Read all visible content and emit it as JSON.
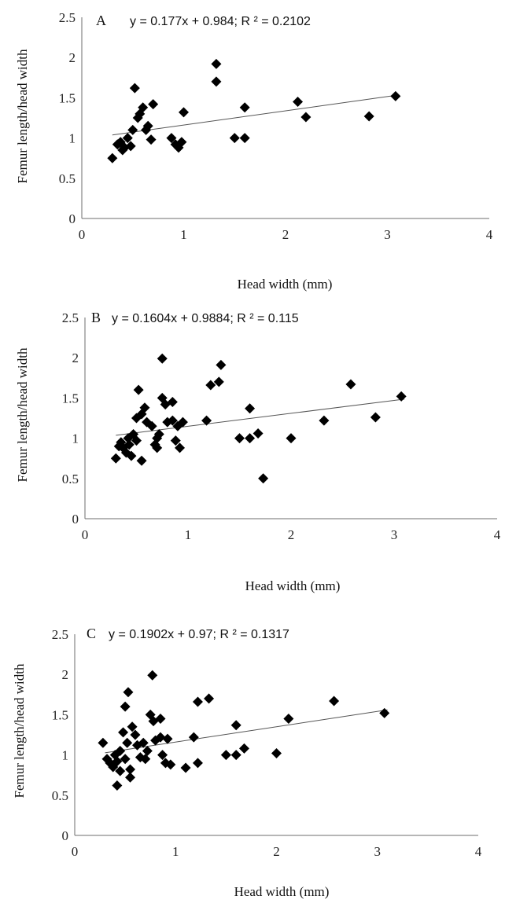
{
  "chart_data": [
    {
      "type": "scatter",
      "panel_label": "A",
      "equation_text": "y = 0.177x + 0.984; R ² = 0.2102",
      "xlabel": "Head width (mm)",
      "ylabel": "Femur length/head width",
      "xlim": [
        0,
        4
      ],
      "ylim": [
        0,
        2.5
      ],
      "x_ticks": [
        "0",
        "1",
        "2",
        "3",
        "4"
      ],
      "y_ticks": [
        "0",
        "0.5",
        "1",
        "1.5",
        "2",
        "2.5"
      ],
      "trendline": {
        "slope": 0.177,
        "intercept": 0.984,
        "x_range": [
          0.3,
          3.1
        ]
      },
      "points": [
        [
          0.3,
          0.75
        ],
        [
          0.35,
          0.92
        ],
        [
          0.38,
          0.95
        ],
        [
          0.4,
          0.85
        ],
        [
          0.42,
          0.88
        ],
        [
          0.45,
          1.0
        ],
        [
          0.48,
          0.9
        ],
        [
          0.5,
          1.1
        ],
        [
          0.52,
          1.62
        ],
        [
          0.55,
          1.25
        ],
        [
          0.57,
          1.3
        ],
        [
          0.6,
          1.38
        ],
        [
          0.63,
          1.1
        ],
        [
          0.65,
          1.15
        ],
        [
          0.68,
          0.98
        ],
        [
          0.7,
          1.42
        ],
        [
          0.88,
          1.0
        ],
        [
          0.92,
          0.92
        ],
        [
          0.95,
          0.88
        ],
        [
          0.98,
          0.95
        ],
        [
          1.0,
          1.32
        ],
        [
          1.32,
          1.92
        ],
        [
          1.32,
          1.7
        ],
        [
          1.5,
          1.0
        ],
        [
          1.6,
          1.38
        ],
        [
          1.6,
          1.0
        ],
        [
          2.12,
          1.45
        ],
        [
          2.2,
          1.26
        ],
        [
          2.82,
          1.27
        ],
        [
          3.08,
          1.52
        ]
      ]
    },
    {
      "type": "scatter",
      "panel_label": "B",
      "equation_text": "y = 0.1604x + 0.9884; R ² = 0.115",
      "xlabel": "Head width (mm)",
      "ylabel": "Femur length/head width",
      "xlim": [
        0,
        4
      ],
      "ylim": [
        0,
        2.5
      ],
      "x_ticks": [
        "0",
        "1",
        "2",
        "3",
        "4"
      ],
      "y_ticks": [
        "0",
        "0.5",
        "1",
        "1.5",
        "2",
        "2.5"
      ],
      "trendline": {
        "slope": 0.1604,
        "intercept": 0.9884,
        "x_range": [
          0.3,
          3.1
        ]
      },
      "points": [
        [
          0.3,
          0.75
        ],
        [
          0.33,
          0.9
        ],
        [
          0.35,
          0.95
        ],
        [
          0.37,
          0.88
        ],
        [
          0.4,
          0.82
        ],
        [
          0.42,
          1.0
        ],
        [
          0.43,
          0.92
        ],
        [
          0.45,
          0.78
        ],
        [
          0.47,
          1.05
        ],
        [
          0.5,
          1.25
        ],
        [
          0.5,
          0.97
        ],
        [
          0.52,
          1.6
        ],
        [
          0.55,
          0.72
        ],
        [
          0.55,
          1.3
        ],
        [
          0.58,
          1.38
        ],
        [
          0.6,
          1.2
        ],
        [
          0.65,
          1.15
        ],
        [
          0.68,
          0.92
        ],
        [
          0.7,
          0.88
        ],
        [
          0.7,
          1.0
        ],
        [
          0.72,
          1.05
        ],
        [
          0.75,
          1.5
        ],
        [
          0.75,
          1.99
        ],
        [
          0.78,
          1.42
        ],
        [
          0.8,
          1.2
        ],
        [
          0.85,
          1.45
        ],
        [
          0.85,
          1.22
        ],
        [
          0.88,
          0.97
        ],
        [
          0.9,
          1.15
        ],
        [
          0.92,
          0.88
        ],
        [
          0.95,
          1.2
        ],
        [
          1.18,
          1.22
        ],
        [
          1.22,
          1.66
        ],
        [
          1.3,
          1.7
        ],
        [
          1.32,
          1.91
        ],
        [
          1.5,
          1.0
        ],
        [
          1.6,
          1.37
        ],
        [
          1.6,
          1.0
        ],
        [
          1.68,
          1.06
        ],
        [
          1.73,
          0.5
        ],
        [
          2.0,
          1.0
        ],
        [
          2.32,
          1.22
        ],
        [
          2.58,
          1.67
        ],
        [
          2.82,
          1.26
        ],
        [
          3.07,
          1.52
        ]
      ]
    },
    {
      "type": "scatter",
      "panel_label": "C",
      "equation_text": "y = 0.1902x + 0.97; R ² = 0.1317",
      "xlabel": "Head width (mm)",
      "ylabel": "Femur length/head width",
      "xlim": [
        0,
        4
      ],
      "ylim": [
        0,
        2.5
      ],
      "x_ticks": [
        "0",
        "1",
        "2",
        "3",
        "4"
      ],
      "y_ticks": [
        "0",
        "0.5",
        "1",
        "1.5",
        "2",
        "2.5"
      ],
      "trendline": {
        "slope": 0.1902,
        "intercept": 0.97,
        "x_range": [
          0.3,
          3.1
        ]
      },
      "points": [
        [
          0.28,
          1.15
        ],
        [
          0.32,
          0.95
        ],
        [
          0.35,
          0.9
        ],
        [
          0.38,
          0.85
        ],
        [
          0.4,
          1.0
        ],
        [
          0.42,
          0.62
        ],
        [
          0.42,
          0.92
        ],
        [
          0.45,
          1.05
        ],
        [
          0.45,
          0.8
        ],
        [
          0.48,
          1.28
        ],
        [
          0.5,
          0.95
        ],
        [
          0.5,
          1.6
        ],
        [
          0.52,
          1.15
        ],
        [
          0.53,
          1.78
        ],
        [
          0.55,
          0.72
        ],
        [
          0.55,
          0.82
        ],
        [
          0.57,
          1.35
        ],
        [
          0.6,
          1.25
        ],
        [
          0.62,
          1.12
        ],
        [
          0.65,
          0.97
        ],
        [
          0.68,
          1.15
        ],
        [
          0.7,
          0.95
        ],
        [
          0.72,
          1.05
        ],
        [
          0.75,
          1.5
        ],
        [
          0.77,
          1.99
        ],
        [
          0.78,
          1.42
        ],
        [
          0.8,
          1.18
        ],
        [
          0.85,
          1.45
        ],
        [
          0.85,
          1.22
        ],
        [
          0.87,
          1.0
        ],
        [
          0.9,
          0.9
        ],
        [
          0.92,
          1.2
        ],
        [
          0.95,
          0.88
        ],
        [
          1.1,
          0.84
        ],
        [
          1.18,
          1.22
        ],
        [
          1.22,
          0.9
        ],
        [
          1.22,
          1.66
        ],
        [
          1.33,
          1.7
        ],
        [
          1.5,
          1.0
        ],
        [
          1.6,
          1.37
        ],
        [
          1.6,
          1.0
        ],
        [
          1.68,
          1.08
        ],
        [
          2.0,
          1.02
        ],
        [
          2.12,
          1.45
        ],
        [
          2.57,
          1.67
        ],
        [
          3.07,
          1.52
        ]
      ]
    }
  ]
}
